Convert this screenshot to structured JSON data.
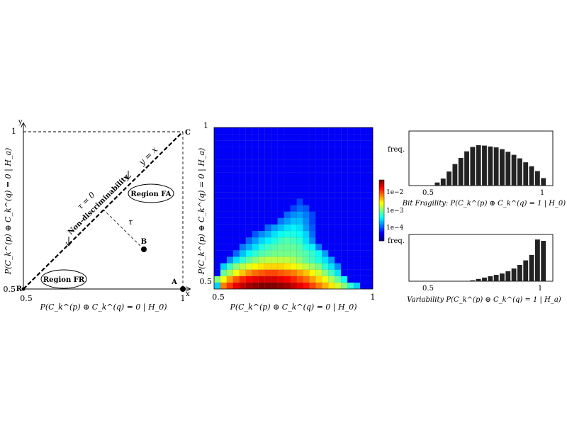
{
  "diagram": {
    "axis_x_letter": "x",
    "axis_y_letter": "y",
    "tick_x_min": "0.5",
    "tick_x_max": "1",
    "tick_y_min": "0.5",
    "tick_y_max": "1",
    "xlabel": "P(C_k^(p) ⊕ C_k^(q) = 0 | H_0)",
    "ylabel": "P(C_k^(p) ⊕ C_k^(q) = 0 | H_a)",
    "point_R": "R",
    "point_A": "A",
    "point_B": "B",
    "point_C": "C",
    "diag_label": "y = x",
    "tau_zero": "τ = 0",
    "tau": "τ",
    "nondisc": "Non-discriminability",
    "region_fa": "Region FA",
    "region_fr": "Region FR"
  },
  "chart_data": [
    {
      "type": "heatmap",
      "xlabel": "P(C_k^(p) ⊕ C_k^(q) = 0 | H_0)",
      "ylabel": "P(C_k^(p) ⊕ C_k^(q) = 0 | H_a)",
      "xlim": [
        0.5,
        1
      ],
      "ylim": [
        0.5,
        1
      ],
      "x_ticks": [
        "0.5",
        "1"
      ],
      "y_ticks": [
        "0.5",
        "1"
      ],
      "grid": [
        25,
        25
      ],
      "colorbar": {
        "scale": "log",
        "labels": [
          "1e−2",
          "1e−3",
          "1e−4"
        ]
      },
      "rows_from_bottom": [
        [
          1.2,
          3.6,
          4,
          4.4,
          4.6,
          4.8,
          4.9,
          5,
          5,
          5,
          4.9,
          4.8,
          4.6,
          4.4,
          4.2,
          3.9,
          3.6,
          3.3,
          3,
          2.6,
          2.2,
          1.7,
          1.2,
          0,
          0
        ],
        [
          2.2,
          2.8,
          3.4,
          3.8,
          4.1,
          4.3,
          4.4,
          4.5,
          4.5,
          4.5,
          4.4,
          4.3,
          4.1,
          3.9,
          3.7,
          3.4,
          3.1,
          2.8,
          2.4,
          2,
          1.5,
          0,
          0,
          0,
          0
        ],
        [
          0,
          2,
          2.4,
          2.8,
          3.2,
          3.5,
          3.7,
          3.8,
          3.9,
          3.9,
          3.8,
          3.7,
          3.6,
          3.4,
          3.2,
          2.9,
          2.6,
          2.2,
          1.8,
          1.3,
          0,
          0,
          0,
          0,
          0
        ],
        [
          0,
          1.2,
          1.8,
          2.2,
          2.5,
          2.7,
          2.9,
          3,
          3.1,
          3.1,
          3.1,
          3,
          2.9,
          2.7,
          2.5,
          2.3,
          2.1,
          1.7,
          1.3,
          0.8,
          0,
          0,
          0,
          0,
          0
        ],
        [
          0,
          0,
          0.8,
          1.3,
          1.7,
          2,
          2.2,
          2.4,
          2.5,
          2.5,
          2.5,
          2.5,
          2.4,
          2.2,
          2,
          1.8,
          1.6,
          1.3,
          0.9,
          0,
          0,
          0,
          0,
          0,
          0
        ],
        [
          0,
          0,
          0,
          0.6,
          1.1,
          1.5,
          1.7,
          1.9,
          2,
          2.1,
          2.1,
          2.1,
          2.1,
          2,
          1.9,
          1.7,
          1.5,
          0.9,
          0,
          0,
          0,
          0,
          0,
          0,
          0
        ],
        [
          0,
          0,
          0,
          0,
          0.7,
          1,
          1.3,
          1.6,
          1.8,
          1.9,
          2,
          2,
          2,
          1.9,
          1.6,
          1.4,
          0.7,
          0,
          0,
          0,
          0,
          0,
          0,
          0,
          0
        ],
        [
          0,
          0,
          0,
          0,
          0,
          0.6,
          0.9,
          1.2,
          1.4,
          1.6,
          1.8,
          1.9,
          1.8,
          1.7,
          1.3,
          0.8,
          0,
          0,
          0,
          0,
          0,
          0,
          0,
          0,
          0
        ],
        [
          0,
          0,
          0,
          0,
          0,
          0,
          0.5,
          0.8,
          1,
          1.3,
          1.5,
          1.6,
          1.6,
          1.5,
          1.2,
          0.6,
          0,
          0,
          0,
          0,
          0,
          0,
          0,
          0,
          0
        ],
        [
          0,
          0,
          0,
          0,
          0,
          0,
          0,
          0,
          0.6,
          0.9,
          1.1,
          1.3,
          1.4,
          1.3,
          0.9,
          0.5,
          0,
          0,
          0,
          0,
          0,
          0,
          0,
          0,
          0
        ],
        [
          0,
          0,
          0,
          0,
          0,
          0,
          0,
          0,
          0,
          0,
          0.7,
          0.9,
          1.1,
          1.1,
          0.8,
          0.4,
          0,
          0,
          0,
          0,
          0,
          0,
          0,
          0,
          0
        ],
        [
          0,
          0,
          0,
          0,
          0,
          0,
          0,
          0,
          0,
          0,
          0,
          0.6,
          0.8,
          0.9,
          0.7,
          0.4,
          0,
          0,
          0,
          0,
          0,
          0,
          0,
          0,
          0
        ],
        [
          0,
          0,
          0,
          0,
          0,
          0,
          0,
          0,
          0,
          0,
          0,
          0,
          0.4,
          0.6,
          0.5,
          0,
          0,
          0,
          0,
          0,
          0,
          0,
          0,
          0,
          0
        ],
        [
          0,
          0,
          0,
          0,
          0,
          0,
          0,
          0,
          0,
          0,
          0,
          0,
          0,
          0.4,
          0,
          0,
          0,
          0,
          0,
          0,
          0,
          0,
          0,
          0,
          0
        ],
        [
          0,
          0,
          0,
          0,
          0,
          0,
          0,
          0,
          0,
          0,
          0,
          0,
          0,
          0,
          0,
          0,
          0,
          0,
          0,
          0,
          0,
          0,
          0,
          0,
          0
        ],
        [
          0,
          0,
          0,
          0,
          0,
          0,
          0,
          0,
          0,
          0,
          0,
          0,
          0,
          0,
          0,
          0,
          0,
          0,
          0,
          0,
          0,
          0,
          0,
          0,
          0
        ],
        [
          0,
          0,
          0,
          0,
          0,
          0,
          0,
          0,
          0,
          0,
          0,
          0,
          0,
          0,
          0,
          0,
          0,
          0,
          0,
          0,
          0,
          0,
          0,
          0,
          0
        ],
        [
          0,
          0,
          0,
          0,
          0,
          0,
          0,
          0,
          0,
          0,
          0,
          0,
          0,
          0,
          0,
          0,
          0,
          0,
          0,
          0,
          0,
          0,
          0,
          0,
          0
        ],
        [
          0,
          0,
          0,
          0,
          0,
          0,
          0,
          0,
          0,
          0,
          0,
          0,
          0,
          0,
          0,
          0,
          0,
          0,
          0,
          0,
          0,
          0,
          0,
          0,
          0
        ],
        [
          0,
          0,
          0,
          0,
          0,
          0,
          0,
          0,
          0,
          0,
          0,
          0,
          0,
          0,
          0,
          0,
          0,
          0,
          0,
          0,
          0,
          0,
          0,
          0,
          0
        ],
        [
          0,
          0,
          0,
          0,
          0,
          0,
          0,
          0,
          0,
          0,
          0,
          0,
          0,
          0,
          0,
          0,
          0,
          0,
          0,
          0,
          0,
          0,
          0,
          0,
          0
        ],
        [
          0,
          0,
          0,
          0,
          0,
          0,
          0,
          0,
          0,
          0,
          0,
          0,
          0,
          0,
          0,
          0,
          0,
          0,
          0,
          0,
          0,
          0,
          0,
          0,
          0
        ],
        [
          0,
          0,
          0,
          0,
          0,
          0,
          0,
          0,
          0,
          0,
          0,
          0,
          0,
          0,
          0,
          0,
          0,
          0,
          0,
          0,
          0,
          0,
          0,
          0,
          0
        ],
        [
          0,
          0,
          0,
          0,
          0,
          0,
          0,
          0,
          0,
          0,
          0,
          0,
          0,
          0,
          0,
          0,
          0,
          0,
          0,
          0,
          0,
          0,
          0,
          0,
          0
        ],
        [
          0,
          0,
          0,
          0,
          0,
          0,
          0,
          0,
          0,
          0,
          0,
          0,
          0,
          0,
          0,
          0,
          0,
          0,
          0,
          0,
          0,
          0,
          0,
          0,
          0
        ]
      ]
    },
    {
      "type": "bar",
      "title": "Bit Fragility: P(C_k^(p) ⊕ C_k^(q) = 1 | H_0)",
      "ylabel": "freq.",
      "xlim": [
        0.43,
        1.04
      ],
      "x_ticks": [
        "0.5",
        "1"
      ],
      "x": [
        0.55,
        0.575,
        0.6,
        0.625,
        0.65,
        0.675,
        0.7,
        0.725,
        0.75,
        0.775,
        0.8,
        0.825,
        0.85,
        0.875,
        0.9,
        0.925,
        0.95,
        0.975,
        1.0
      ],
      "values": [
        0.07,
        0.16,
        0.32,
        0.49,
        0.63,
        0.78,
        0.88,
        0.92,
        0.91,
        0.89,
        0.87,
        0.83,
        0.77,
        0.7,
        0.62,
        0.53,
        0.44,
        0.33,
        0.17
      ]
    },
    {
      "type": "bar",
      "title": "Variability P(C_k^(p) ⊕ C_k^(q) = 1 | H_a)",
      "ylabel": "freq.",
      "xlim": [
        0.43,
        1.04
      ],
      "x_ticks": [
        "0.5",
        "1"
      ],
      "x": [
        0.7,
        0.725,
        0.75,
        0.775,
        0.8,
        0.825,
        0.85,
        0.875,
        0.9,
        0.925,
        0.95,
        0.975,
        1.0
      ],
      "values": [
        0.02,
        0.05,
        0.08,
        0.11,
        0.14,
        0.17,
        0.22,
        0.28,
        0.36,
        0.46,
        0.58,
        0.92,
        0.89
      ]
    }
  ]
}
